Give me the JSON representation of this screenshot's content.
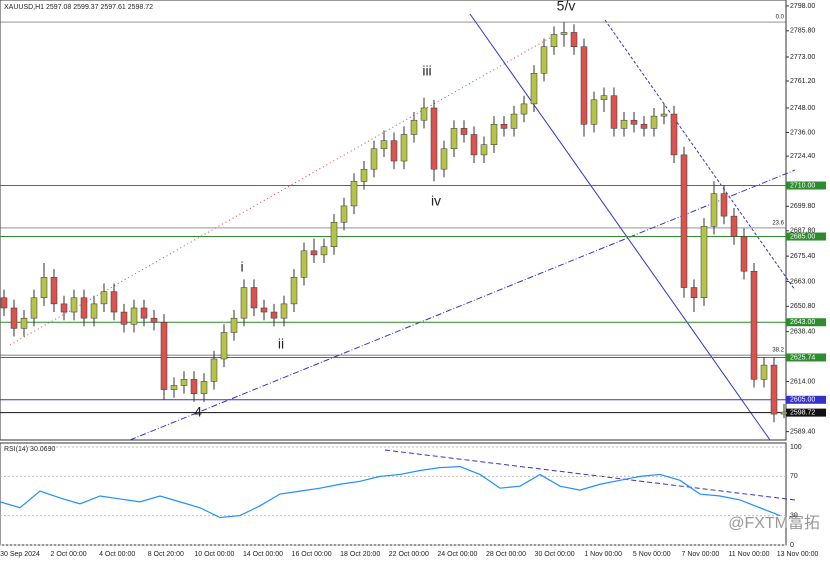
{
  "chart_data": {
    "type": "candlestick",
    "title": "XAUUSD,H1  2597.08 2599.37 2597.61 2598.72",
    "x_labels": [
      "30 Sep 2024",
      "2 Oct 00:00",
      "4 Oct 00:00",
      "8 Oct 20:00",
      "10 Oct 00:00",
      "14 Oct 00:00",
      "16 Oct 00:00",
      "18 Oct 20:00",
      "22 Oct 00:00",
      "24 Oct 00:00",
      "28 Oct 00:00",
      "30 Oct 00:00",
      "1 Nov 00:00",
      "5 Nov 00:00",
      "7 Nov 00:00",
      "11 Nov 00:00",
      "13 Nov 00:00"
    ],
    "open": [
      2655,
      2650,
      2640,
      2645,
      2655,
      2665,
      2652,
      2648,
      2655,
      2645,
      2652,
      2658,
      2648,
      2642,
      2650,
      2645,
      2643,
      2610,
      2612,
      2615,
      2608,
      2614,
      2625,
      2638,
      2645,
      2660,
      2650,
      2648,
      2645,
      2652,
      2665,
      2678,
      2676,
      2680,
      2692,
      2700,
      2712,
      2718,
      2728,
      2732,
      2722,
      2735,
      2742,
      2748,
      2718,
      2728,
      2738,
      2735,
      2725,
      2730,
      2740,
      2738,
      2745,
      2750,
      2765,
      2778,
      2784,
      2785,
      2778,
      2740,
      2752,
      2754,
      2738,
      2742,
      2740,
      2738,
      2744,
      2745,
      2725,
      2660,
      2655,
      2690,
      2706,
      2695,
      2685,
      2668,
      2615,
      2622,
      2598
    ],
    "high": [
      2659,
      2654,
      2649,
      2659,
      2672,
      2669,
      2656,
      2659,
      2659,
      2656,
      2662,
      2662,
      2652,
      2654,
      2654,
      2649,
      2647,
      2616,
      2619,
      2619,
      2618,
      2629,
      2642,
      2649,
      2664,
      2664,
      2654,
      2652,
      2656,
      2669,
      2682,
      2684,
      2684,
      2696,
      2704,
      2716,
      2722,
      2732,
      2737,
      2736,
      2739,
      2746,
      2753,
      2752,
      2732,
      2742,
      2742,
      2739,
      2734,
      2744,
      2744,
      2749,
      2754,
      2769,
      2782,
      2788,
      2790,
      2789,
      2782,
      2756,
      2758,
      2758,
      2746,
      2746,
      2744,
      2748,
      2750,
      2749,
      2729,
      2664,
      2694,
      2712,
      2710,
      2699,
      2689,
      2672,
      2626,
      2626,
      2603
    ],
    "low": [
      2646,
      2636,
      2636,
      2641,
      2651,
      2648,
      2644,
      2644,
      2641,
      2641,
      2648,
      2644,
      2638,
      2638,
      2641,
      2639,
      2605,
      2606,
      2608,
      2604,
      2604,
      2610,
      2621,
      2634,
      2641,
      2646,
      2644,
      2641,
      2641,
      2648,
      2661,
      2672,
      2672,
      2676,
      2688,
      2696,
      2708,
      2714,
      2724,
      2718,
      2718,
      2731,
      2738,
      2712,
      2714,
      2724,
      2731,
      2721,
      2721,
      2726,
      2734,
      2734,
      2741,
      2746,
      2761,
      2774,
      2778,
      2774,
      2734,
      2736,
      2746,
      2734,
      2734,
      2736,
      2734,
      2734,
      2740,
      2721,
      2655,
      2648,
      2651,
      2686,
      2691,
      2681,
      2664,
      2611,
      2611,
      2594,
      2596
    ],
    "close": [
      2650,
      2640,
      2645,
      2655,
      2665,
      2652,
      2648,
      2655,
      2645,
      2652,
      2658,
      2648,
      2642,
      2650,
      2645,
      2643,
      2610,
      2612,
      2615,
      2608,
      2614,
      2625,
      2638,
      2645,
      2660,
      2650,
      2648,
      2645,
      2652,
      2665,
      2678,
      2676,
      2680,
      2692,
      2700,
      2712,
      2718,
      2728,
      2732,
      2722,
      2735,
      2742,
      2748,
      2718,
      2728,
      2738,
      2735,
      2725,
      2730,
      2740,
      2738,
      2745,
      2750,
      2765,
      2778,
      2784,
      2785,
      2778,
      2740,
      2752,
      2754,
      2738,
      2742,
      2740,
      2738,
      2744,
      2745,
      2725,
      2660,
      2655,
      2690,
      2706,
      2695,
      2685,
      2668,
      2615,
      2622,
      2598,
      2599
    ],
    "up_color": "#b5c34a",
    "down_color": "#d9534f",
    "ylim": [
      2585.3,
      2800.9
    ],
    "yticks": [
      {
        "value": 2798.0,
        "label": "2798.00"
      },
      {
        "value": 2785.8,
        "label": "2785.80"
      },
      {
        "value": 2773.0,
        "label": "2773.00"
      },
      {
        "value": 2761.2,
        "label": "2761.20"
      },
      {
        "value": 2748.0,
        "label": "2748.00"
      },
      {
        "value": 2736.0,
        "label": "2736.00"
      },
      {
        "value": 2724.4,
        "label": "2724.40"
      },
      {
        "value": 2699.8,
        "label": "2699.80"
      },
      {
        "value": 2687.8,
        "label": "2687.80"
      },
      {
        "value": 2675.4,
        "label": "2675.40"
      },
      {
        "value": 2663.0,
        "label": "2663.00"
      },
      {
        "value": 2650.8,
        "label": "2650.80"
      },
      {
        "value": 2638.4,
        "label": "2638.40"
      },
      {
        "value": 2614.0,
        "label": "2614.00"
      },
      {
        "value": 2589.4,
        "label": "2589.40"
      }
    ],
    "levels": [
      {
        "value": 2710.0,
        "label": "2710.00",
        "color": "#2e8b2e"
      },
      {
        "value": 2685.0,
        "label": "2685.00",
        "color": "#2e8b2e"
      },
      {
        "value": 2643.0,
        "label": "2643.00",
        "color": "#2e8b2e"
      },
      {
        "value": 2625.74,
        "label": "2625.74",
        "color": "#2e8b2e"
      },
      {
        "value": 2605.0,
        "label": "2605.00",
        "color": "#3333cc"
      },
      {
        "value": 2598.72,
        "label": "2598.72",
        "color": "#111111"
      }
    ],
    "fib_levels": [
      {
        "value": 2790.1,
        "label": "0.0"
      },
      {
        "value": 2689.2,
        "label": "23.6"
      },
      {
        "value": 2626.9,
        "label": "38.2"
      }
    ],
    "wave_labels": [
      "5/v",
      "iii",
      "iv",
      "i",
      "ii",
      "4"
    ],
    "rsi": {
      "title": "RSI(14) 30.0690",
      "color": "#1e90ff",
      "ylim": [
        0,
        100
      ],
      "yticks": [
        100,
        70,
        30,
        0
      ],
      "values": [
        44,
        38,
        55,
        48,
        42,
        50,
        47,
        44,
        50,
        44,
        38,
        28,
        30,
        40,
        52,
        55,
        58,
        62,
        65,
        70,
        72,
        76,
        79,
        80,
        72,
        58,
        60,
        72,
        60,
        56,
        62,
        66,
        70,
        72,
        66,
        52,
        50,
        46,
        38,
        30
      ]
    },
    "watermark": "@FXTM富拓"
  }
}
